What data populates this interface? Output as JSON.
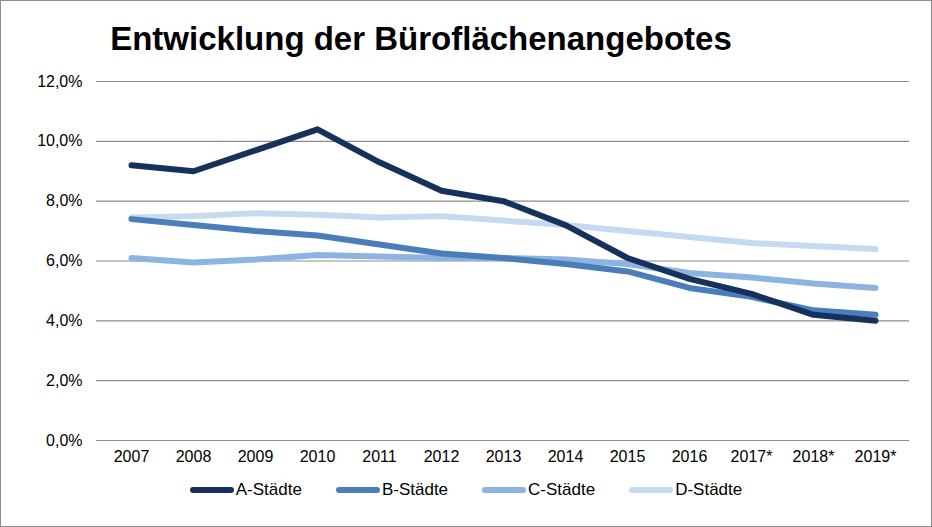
{
  "chart_data": {
    "type": "line",
    "title": "Entwicklung der Büroflächenangebotes",
    "categories": [
      "2007",
      "2008",
      "2009",
      "2010",
      "2011",
      "2012",
      "2013",
      "2014",
      "2015",
      "2016",
      "2017*",
      "2018*",
      "2019*"
    ],
    "series": [
      {
        "name": "A-Städte",
        "color": "#16325c",
        "values": [
          9.2,
          9.0,
          9.7,
          10.4,
          9.3,
          8.35,
          8.0,
          7.2,
          6.1,
          5.4,
          4.9,
          4.2,
          4.0
        ]
      },
      {
        "name": "B-Städte",
        "color": "#4a7ebb",
        "values": [
          7.4,
          7.2,
          7.0,
          6.85,
          6.55,
          6.25,
          6.1,
          5.9,
          5.65,
          5.1,
          4.8,
          4.35,
          4.2
        ]
      },
      {
        "name": "C-Städte",
        "color": "#8db3e2",
        "values": [
          6.1,
          5.95,
          6.05,
          6.2,
          6.15,
          6.1,
          6.1,
          6.05,
          5.9,
          5.6,
          5.45,
          5.25,
          5.1
        ]
      },
      {
        "name": "D-Städte",
        "color": "#c5d9f1",
        "values": [
          7.45,
          7.5,
          7.6,
          7.55,
          7.45,
          7.5,
          7.35,
          7.2,
          7.0,
          6.8,
          6.6,
          6.5,
          6.4
        ]
      }
    ],
    "ylim": [
      0,
      12
    ],
    "yticks": [
      {
        "value": 0,
        "label": "0,0%"
      },
      {
        "value": 2,
        "label": "2,0%"
      },
      {
        "value": 4,
        "label": "4,0%"
      },
      {
        "value": 6,
        "label": "6,0%"
      },
      {
        "value": 8,
        "label": "8,0%"
      },
      {
        "value": 10,
        "label": "10,0%"
      },
      {
        "value": 12,
        "label": "12,0%"
      }
    ],
    "grid": true,
    "legend": "bottom"
  }
}
